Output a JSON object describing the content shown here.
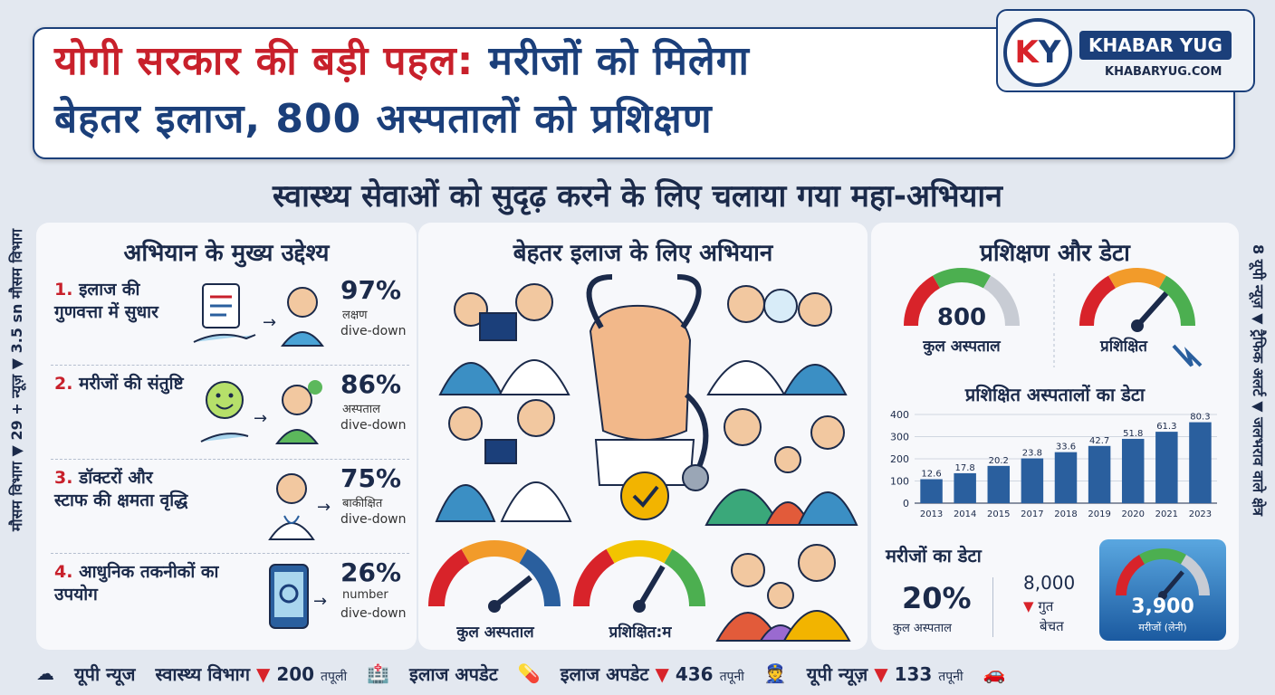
{
  "title": {
    "line1_red": "योगी सरकार की बड़ी पहल:",
    "line1_blue": "मरीजों को मिलेगा",
    "line2": "बेहतर इलाज, 800 अस्पतालों को प्रशिक्षण"
  },
  "brand": {
    "logo_k": "K",
    "logo_y": "Y",
    "name": "KHABAR YUG",
    "url": "KHABARYUG.COM"
  },
  "subtitle": "स्वास्थ्य सेवाओं को सुदृढ़ करने के लिए चलाया गया महा-अभियान",
  "ticker_left": {
    "a": "मौसम विभाग",
    "b": "29 + न्यूज़",
    "c": "3.5 sn",
    "d": "मौसम विभाग"
  },
  "ticker_right": {
    "a": "8 यूपी न्यूज़",
    "b": "ट्रैफिक अलर्ट",
    "c": "जलभराव वाले क्षेत्र"
  },
  "objectives": {
    "heading": "अभियान के मुख्य उद्देश्य",
    "items": [
      {
        "num": "1.",
        "label": "इलाज की गुणवत्ता में सुधार",
        "pct": "97%",
        "sub1": "लक्षण",
        "sub2": "dive-down"
      },
      {
        "num": "2.",
        "label": "मरीजों की संतुष्टि",
        "pct": "86%",
        "sub1": "अस्पताल",
        "sub2": "dive-down"
      },
      {
        "num": "3.",
        "label": "डॉक्टरों और स्टाफ की क्षमता वृद्धि",
        "pct": "75%",
        "sub1": "बाकीक्षित",
        "sub2": "dive-down"
      },
      {
        "num": "4.",
        "label": "आधुनिक तकनीकों का उपयोग",
        "pct": "26%",
        "sub1": "number",
        "sub2": "dive-down"
      }
    ]
  },
  "campaign": {
    "heading": "बेहतर इलाज के लिए अभियान",
    "gauge1_label": "कुल अस्पताल",
    "gauge2_label": "प्रशिक्षित:म"
  },
  "training": {
    "heading": "प्रशिक्षण और डेटा",
    "gauge1_value": "800",
    "gauge1_label": "कुल अस्पताल",
    "gauge2_label": "प्रशिक्षित"
  },
  "patients": {
    "heading": "मरीजों का डेटा",
    "pct": "20%",
    "pct_label": "कुल अस्पताल",
    "count": "8,000",
    "count_l1": "गुत",
    "count_l2": "बेचत",
    "card_value": "3,900",
    "card_label": "मरीजों (लेनी)"
  },
  "chart_data": {
    "type": "bar",
    "title": "प्रशिक्षित अस्पतालों का डेटा",
    "categories": [
      "2013",
      "2014",
      "2015",
      "2017",
      "2018",
      "2019",
      "2020",
      "2021",
      "2023"
    ],
    "values": [
      12.6,
      17.8,
      20.2,
      23.8,
      33.6,
      42.7,
      51.8,
      61.3,
      80.3
    ],
    "bar_heights": [
      108,
      135,
      168,
      202,
      230,
      258,
      290,
      322,
      365
    ],
    "yticks": [
      "0",
      "100",
      "200",
      "300",
      "400"
    ],
    "ylim": [
      0,
      400
    ],
    "grid": true
  },
  "bottom_bar": {
    "i1": "यूपी न्यूज",
    "i2": "स्वास्थ्य विभाग",
    "i2v": "200",
    "i2u": "तपूली",
    "i3": "इलाज अपडेट",
    "i4": "इलाज अपडेट",
    "i4v": "436",
    "i4u": "तपूनी",
    "i5": "यूपी न्यूज़",
    "i5v": "133",
    "i5u": "तपूनी"
  },
  "colors": {
    "navy": "#1b3f7a",
    "red": "#c8202b",
    "bar": "#2a5f9e",
    "green": "#4caf50",
    "orange": "#f29b2a"
  }
}
